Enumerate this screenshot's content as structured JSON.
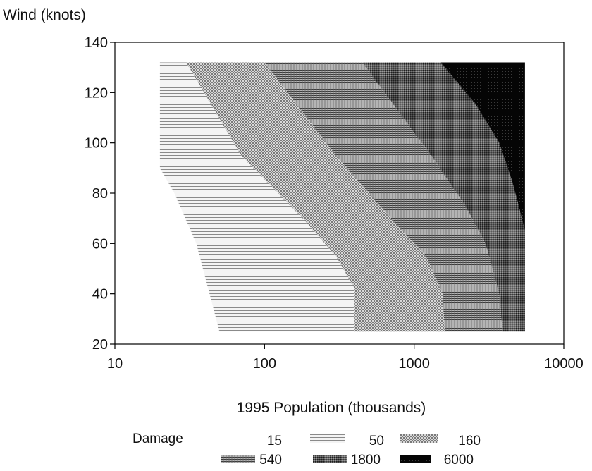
{
  "chart_data": {
    "type": "heatmap",
    "title": "",
    "xlabel": "1995 Population (thousands)",
    "ylabel": "Wind (knots)",
    "x_scale": "log",
    "xlim": [
      10,
      10000
    ],
    "ylim": [
      20,
      140
    ],
    "x_ticks": [
      10,
      100,
      1000,
      10000
    ],
    "x_tick_labels": [
      "10",
      "100",
      "1000",
      "10000"
    ],
    "y_ticks": [
      20,
      40,
      60,
      80,
      100,
      120,
      140
    ],
    "y_tick_labels": [
      "20",
      "40",
      "60",
      "80",
      "100",
      "120",
      "140"
    ],
    "grid": false,
    "legend_placement": "bottom",
    "legend": {
      "title": "Damage",
      "levels": [
        {
          "label": "15",
          "fill": "#ffffff"
        },
        {
          "label": "50",
          "fill": "#e6e6e6"
        },
        {
          "label": "160",
          "fill": "#c9c9c9"
        },
        {
          "label": "540",
          "fill": "#a3a3a3"
        },
        {
          "label": "1800",
          "fill": "#6e6e6e"
        },
        {
          "label": "6000",
          "fill": "#0a0a0a"
        }
      ]
    },
    "region": {
      "x_range": [
        20,
        5500
      ],
      "y_range": [
        25,
        132
      ]
    },
    "band_boundaries": [
      {
        "between": [
          "15",
          "50"
        ],
        "points": [
          [
            20,
            90
          ],
          [
            25,
            80
          ],
          [
            35,
            60
          ],
          [
            50,
            25
          ]
        ]
      },
      {
        "between": [
          "50",
          "160"
        ],
        "points": [
          [
            30,
            132
          ],
          [
            70,
            95
          ],
          [
            180,
            70
          ],
          [
            300,
            55
          ],
          [
            400,
            42
          ],
          [
            400,
            25
          ]
        ]
      },
      {
        "between": [
          "160",
          "540"
        ],
        "points": [
          [
            100,
            132
          ],
          [
            300,
            95
          ],
          [
            700,
            70
          ],
          [
            1200,
            55
          ],
          [
            1550,
            40
          ],
          [
            1600,
            25
          ]
        ]
      },
      {
        "between": [
          "540",
          "1800"
        ],
        "points": [
          [
            450,
            132
          ],
          [
            1300,
            95
          ],
          [
            2200,
            75
          ],
          [
            3000,
            60
          ],
          [
            3700,
            40
          ],
          [
            3900,
            25
          ]
        ]
      },
      {
        "between": [
          "1800",
          "6000"
        ],
        "points": [
          [
            1500,
            132
          ],
          [
            2600,
            115
          ],
          [
            3700,
            100
          ],
          [
            4500,
            85
          ],
          [
            5000,
            75
          ],
          [
            5500,
            65
          ]
        ]
      }
    ]
  }
}
